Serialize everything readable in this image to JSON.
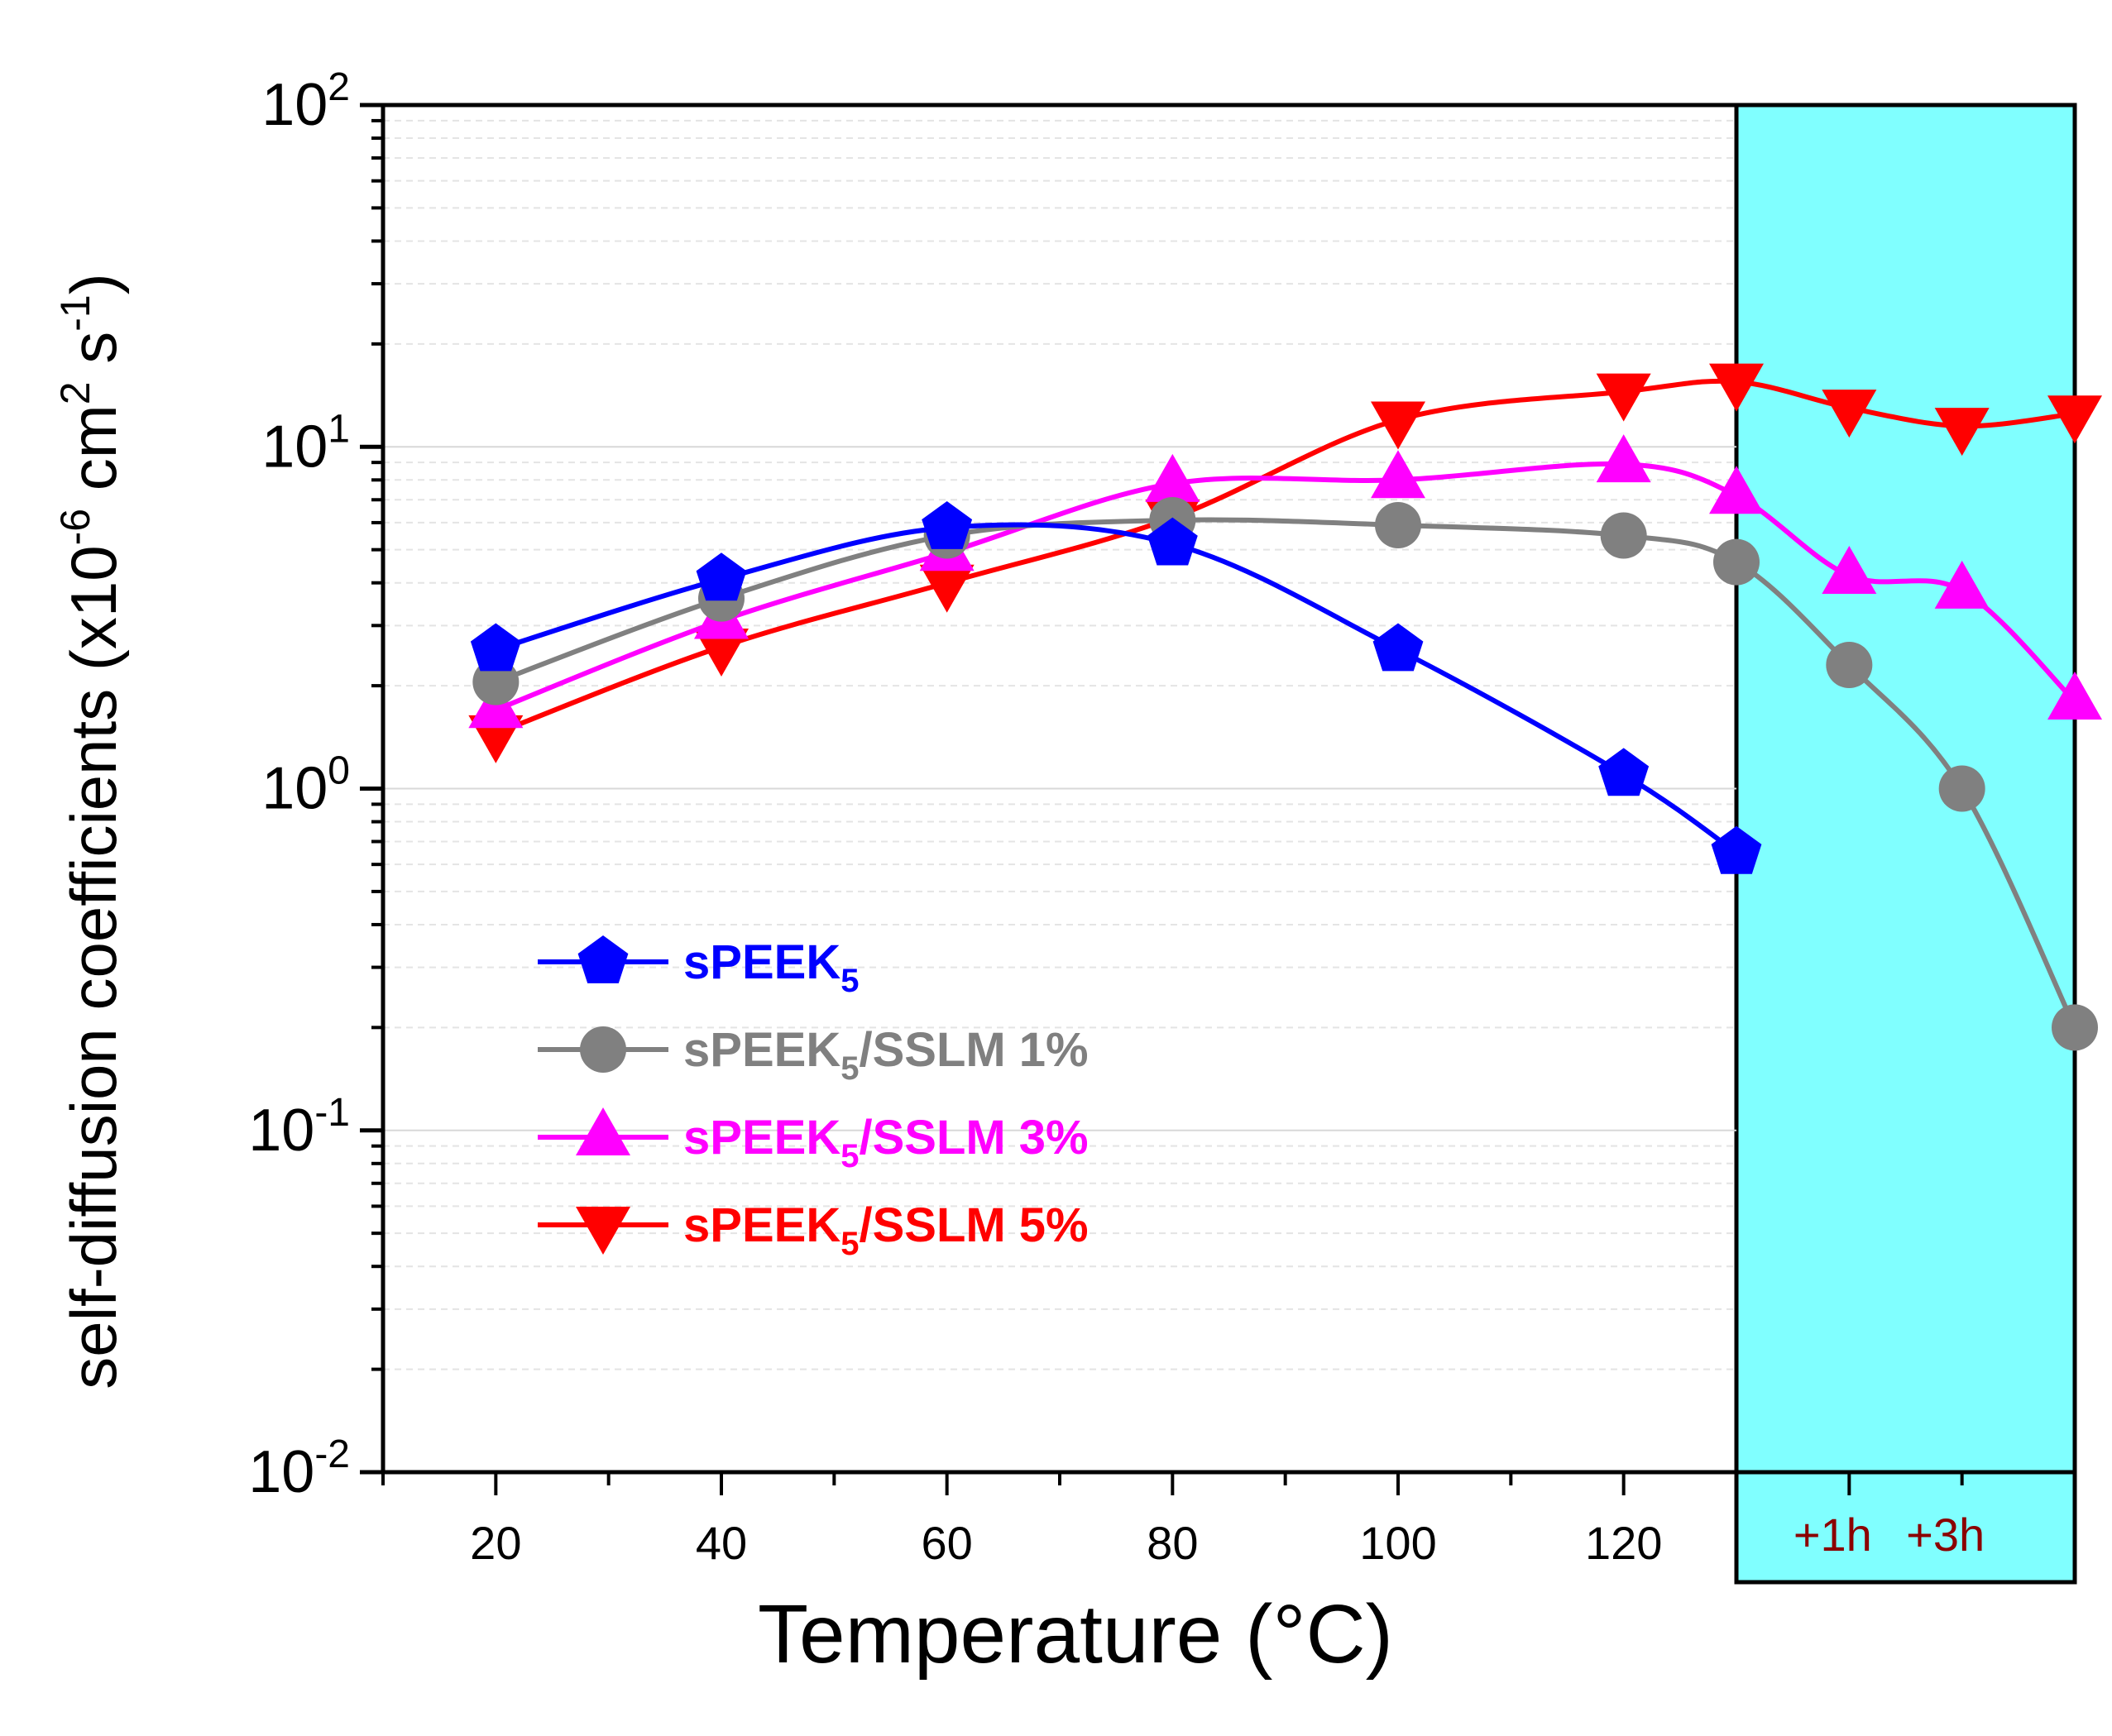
{
  "chart_data": {
    "type": "line",
    "xlabel": "Temperature (°C)",
    "ylabel": "self-diffusion coefficients (x10",
    "ylabel_exp1": "-6",
    "ylabel_unit": " cm",
    "ylabel_exp2": "2",
    "ylabel_unit2": " s",
    "ylabel_exp3": "-1",
    "ylabel_close": ")",
    "xlim": [
      10,
      160
    ],
    "ylim": [
      0.01,
      100
    ],
    "yscale": "log",
    "x_ticks": [
      "20",
      "40",
      "60",
      "80",
      "100",
      "120"
    ],
    "x_tick_values": [
      20,
      40,
      60,
      80,
      100,
      120
    ],
    "y_ticks": [
      {
        "base": "10",
        "exp": "-2",
        "value": 0.01
      },
      {
        "base": "10",
        "exp": "-1",
        "value": 0.1
      },
      {
        "base": "10",
        "exp": "0",
        "value": 1
      },
      {
        "base": "10",
        "exp": "1",
        "value": 10
      },
      {
        "base": "10",
        "exp": "2",
        "value": 100
      }
    ],
    "shaded_region": {
      "x_start": 130,
      "x_end": 160,
      "color": "#80FFFF",
      "labels": [
        {
          "text": "+1h",
          "x": 140
        },
        {
          "text": "+3h",
          "x": 150
        }
      ]
    },
    "label_color_shade": "#8B0000",
    "grid": "minor y dashed",
    "legend_position": "lower-left",
    "series": [
      {
        "name": "sPEEK",
        "name_sub": "5",
        "name_suffix": "",
        "color": "#0000FF",
        "marker": "pentagon",
        "x": [
          20,
          40,
          60,
          80,
          100,
          120,
          130
        ],
        "y": [
          2.55,
          4.1,
          5.8,
          5.2,
          2.55,
          1.1,
          0.65
        ]
      },
      {
        "name": "sPEEK",
        "name_sub": "5",
        "name_suffix": "/SSLM 1%",
        "color": "#808080",
        "marker": "circle",
        "x": [
          20,
          40,
          60,
          80,
          100,
          120,
          130,
          140,
          150,
          160
        ],
        "y": [
          2.05,
          3.6,
          5.5,
          6.1,
          5.9,
          5.5,
          4.6,
          2.3,
          1.0,
          0.2
        ]
      },
      {
        "name": "sPEEK",
        "name_sub": "5",
        "name_suffix": "/SSLM 3%",
        "color": "#FF00FF",
        "marker": "triangle-up",
        "x": [
          20,
          40,
          60,
          80,
          100,
          120,
          130,
          140,
          150,
          160
        ],
        "y": [
          1.7,
          3.1,
          4.9,
          7.8,
          8.0,
          8.9,
          7.2,
          4.2,
          3.8,
          1.8
        ]
      },
      {
        "name": "sPEEK",
        "name_sub": "5",
        "name_suffix": "/SSLM 5%",
        "color": "#FF0000",
        "marker": "triangle-down",
        "x": [
          20,
          40,
          60,
          80,
          100,
          120,
          130,
          140,
          150,
          160
        ],
        "y": [
          1.45,
          2.6,
          4.0,
          6.2,
          12.0,
          14.5,
          15.5,
          13.0,
          11.5,
          12.5
        ]
      }
    ]
  }
}
